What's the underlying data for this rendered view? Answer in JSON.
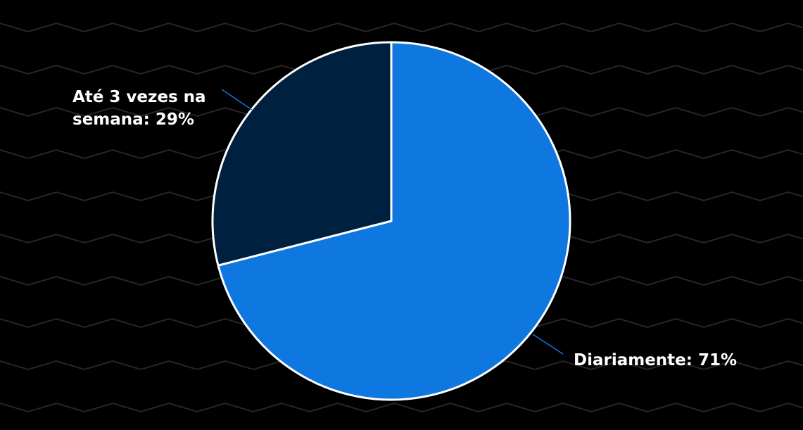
{
  "chart_data": {
    "type": "pie",
    "slices": [
      {
        "label": "Diariamente",
        "value": 71,
        "value_text": "Diariamente: 71%",
        "color": "#0e77e0"
      },
      {
        "label": "Até 3 vezes na semana",
        "value": 29,
        "value_lines": [
          "Até 3 vezes na",
          "semana: 29%"
        ],
        "color": "#002040"
      }
    ],
    "slice_border_color": "#ffffff",
    "leader_line_color": "#0e77e0",
    "background_color": "#000000",
    "background_pattern_color": "#262626"
  }
}
